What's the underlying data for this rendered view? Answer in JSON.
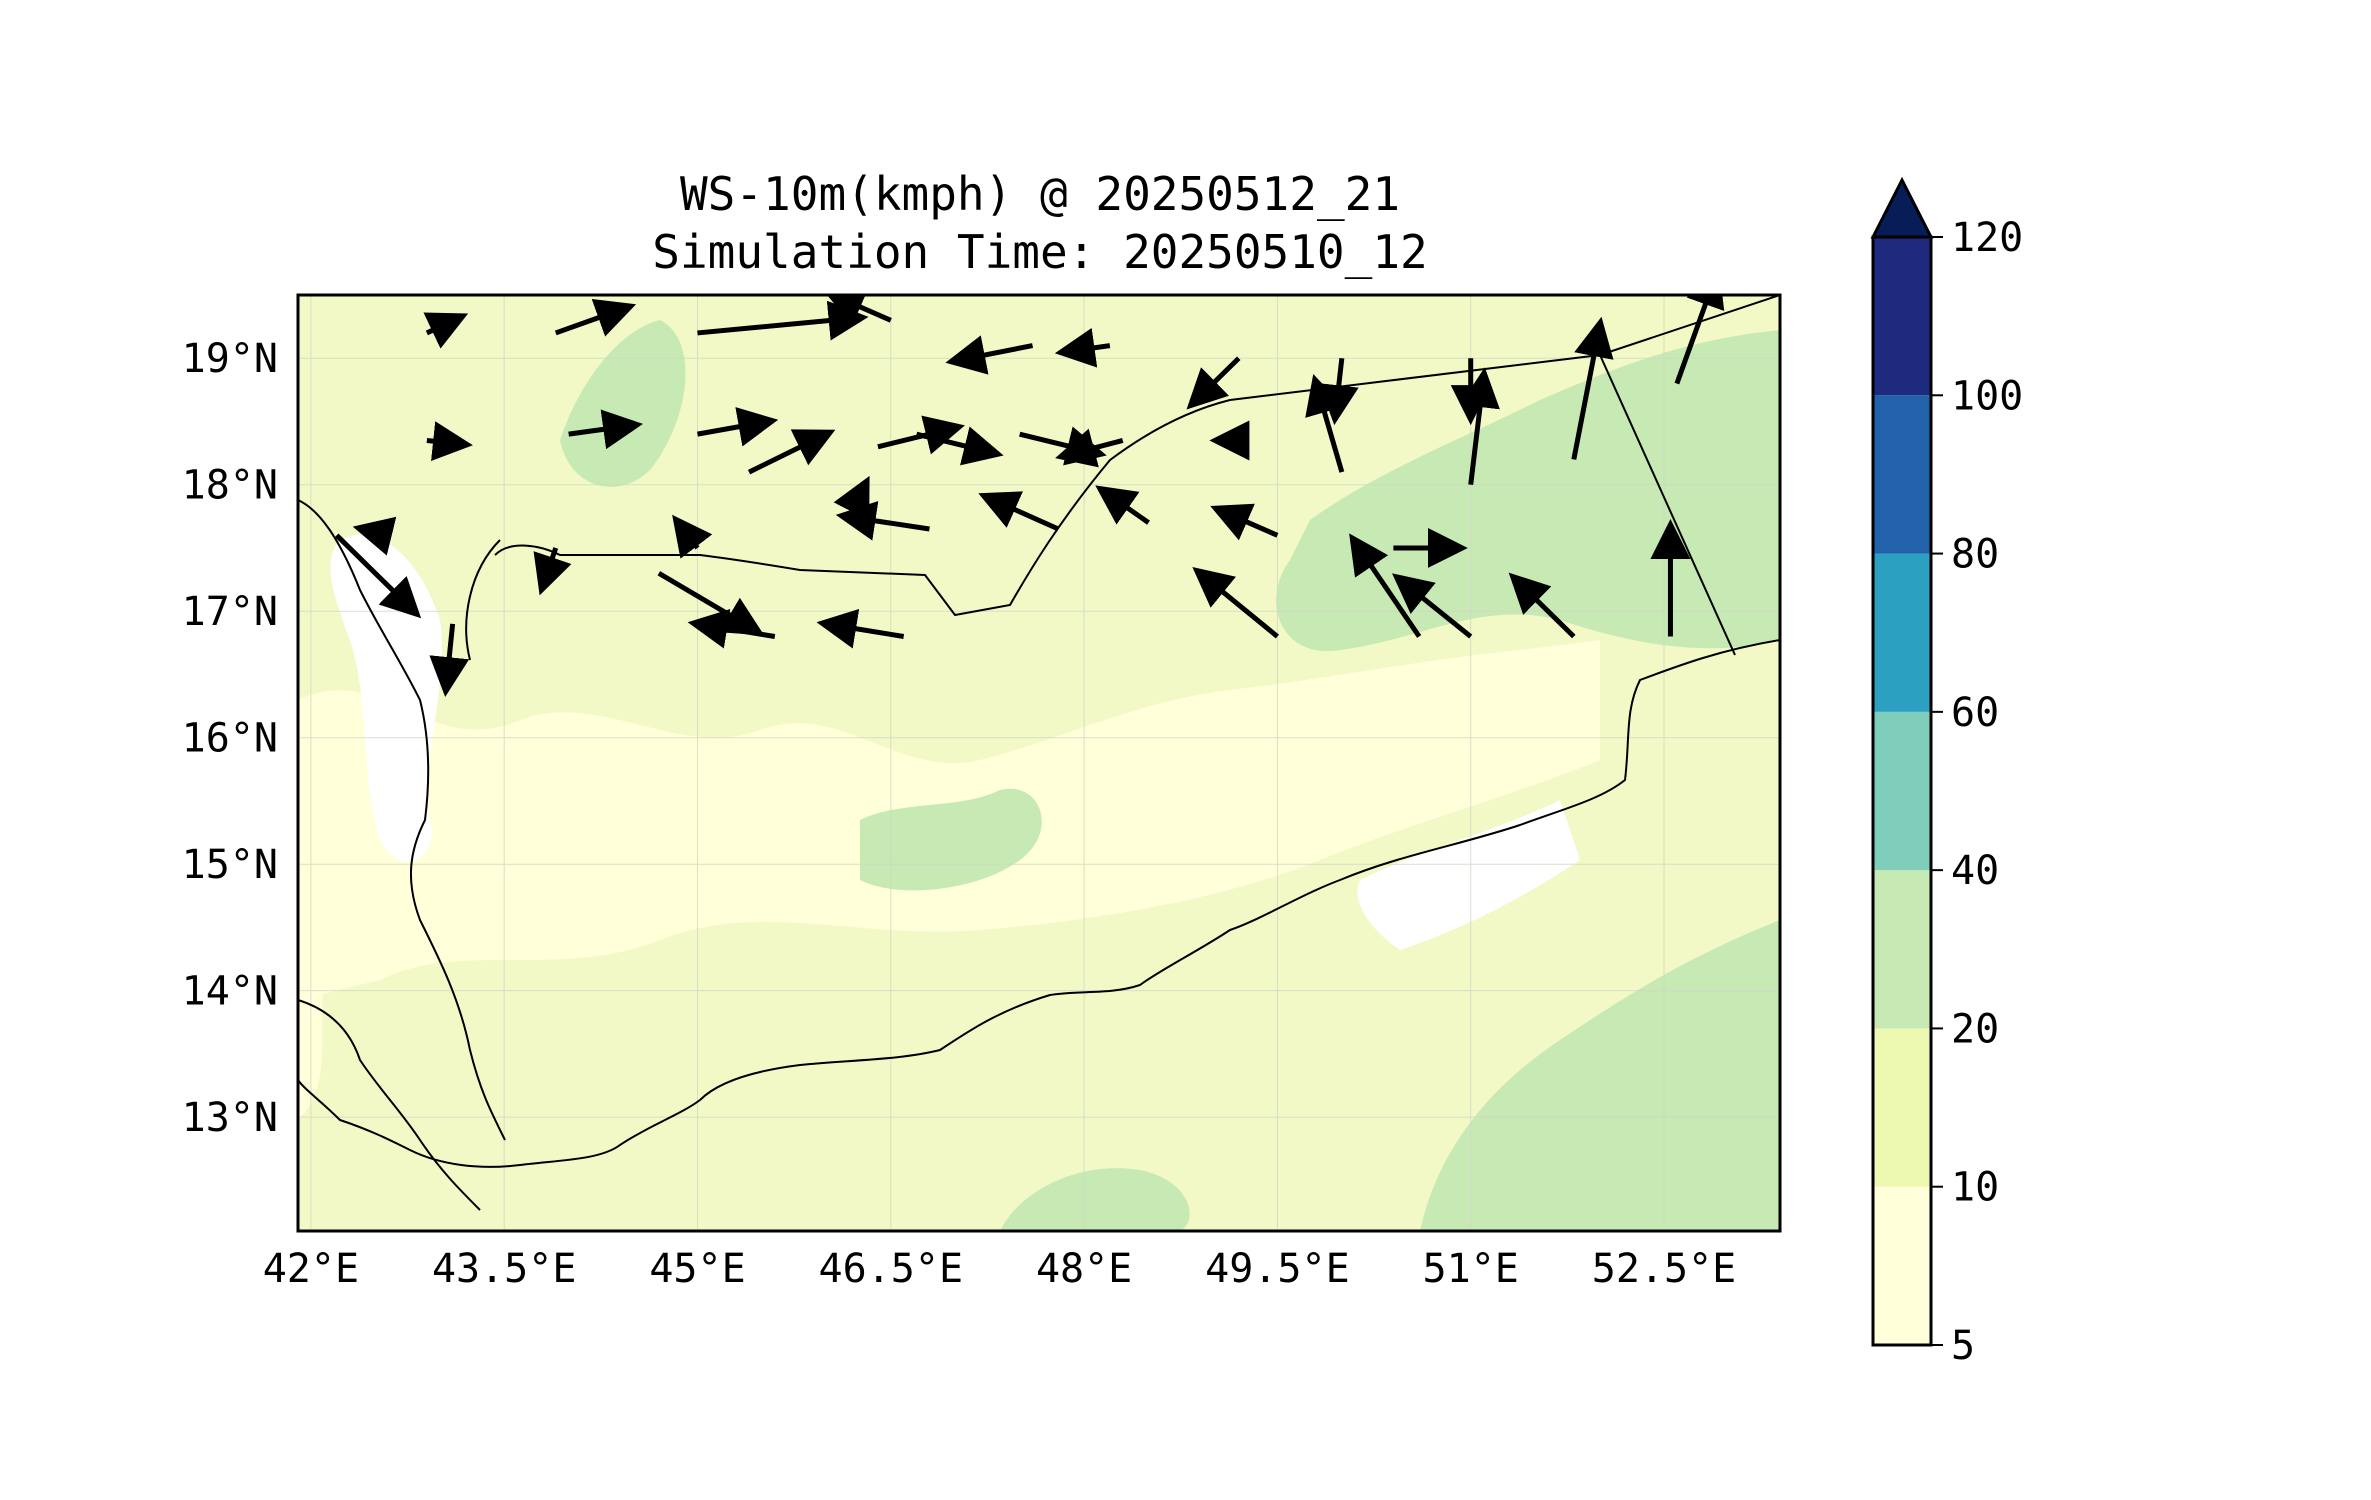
{
  "title": {
    "line1": "WS-10m(kmph) @ 20250512_21",
    "line2": "Simulation Time: 20250510_12"
  },
  "map": {
    "lon_range": [
      41.9,
      53.4
    ],
    "lat_range": [
      12.1,
      19.5
    ],
    "lon_ticks": [
      {
        "value": 42.0,
        "label": "42°E"
      },
      {
        "value": 43.5,
        "label": "43.5°E"
      },
      {
        "value": 45.0,
        "label": "45°E"
      },
      {
        "value": 46.5,
        "label": "46.5°E"
      },
      {
        "value": 48.0,
        "label": "48°E"
      },
      {
        "value": 49.5,
        "label": "49.5°E"
      },
      {
        "value": 51.0,
        "label": "51°E"
      },
      {
        "value": 52.5,
        "label": "52.5°E"
      }
    ],
    "lat_ticks": [
      {
        "value": 19,
        "label": "19°N"
      },
      {
        "value": 18,
        "label": "18°N"
      },
      {
        "value": 17,
        "label": "17°N"
      },
      {
        "value": 16,
        "label": "16°N"
      },
      {
        "value": 15,
        "label": "15°N"
      },
      {
        "value": 14,
        "label": "14°N"
      },
      {
        "value": 13,
        "label": "13°N"
      }
    ],
    "colors": {
      "land_low": "#f2f9c6",
      "band_5_10": "#ffffd9",
      "band_10_20": "#edf8b1",
      "band_20_40": "#c7e9b4",
      "gap": "#ffffff"
    }
  },
  "colorbar": {
    "levels": [
      5,
      10,
      20,
      40,
      60,
      80,
      100,
      120
    ],
    "labels": [
      "5",
      "10",
      "20",
      "40",
      "60",
      "80",
      "100",
      "120"
    ],
    "colors": [
      "#ffffd9",
      "#edf8b1",
      "#c7e9b4",
      "#7fcdbb",
      "#2ca0c1",
      "#2162aa",
      "#1d2a7e"
    ],
    "extend_color": "#081d58"
  },
  "wind_vectors": [
    {
      "lon": 42.9,
      "lat": 19.2,
      "dx": 0.25,
      "dy": 0.12
    },
    {
      "lon": 43.9,
      "lat": 19.2,
      "dx": 0.55,
      "dy": 0.2
    },
    {
      "lon": 45.0,
      "lat": 19.2,
      "dx": 1.25,
      "dy": 0.12
    },
    {
      "lon": 46.5,
      "lat": 19.3,
      "dx": -0.45,
      "dy": 0.2
    },
    {
      "lon": 47.6,
      "lat": 19.1,
      "dx": -0.6,
      "dy": -0.12
    },
    {
      "lon": 48.2,
      "lat": 19.1,
      "dx": -0.35,
      "dy": -0.05
    },
    {
      "lon": 49.2,
      "lat": 19.0,
      "dx": -0.35,
      "dy": -0.35
    },
    {
      "lon": 50.0,
      "lat": 19.0,
      "dx": -0.05,
      "dy": -0.45
    },
    {
      "lon": 51.0,
      "lat": 19.0,
      "dx": 0.0,
      "dy": -0.45
    },
    {
      "lon": 42.9,
      "lat": 18.35,
      "dx": 0.28,
      "dy": -0.03
    },
    {
      "lon": 44.0,
      "lat": 18.4,
      "dx": 0.5,
      "dy": 0.07
    },
    {
      "lon": 45.0,
      "lat": 18.4,
      "dx": 0.55,
      "dy": 0.1
    },
    {
      "lon": 45.4,
      "lat": 18.1,
      "dx": 0.6,
      "dy": 0.3
    },
    {
      "lon": 46.4,
      "lat": 18.3,
      "dx": 0.6,
      "dy": 0.15
    },
    {
      "lon": 46.7,
      "lat": 18.4,
      "dx": 0.6,
      "dy": -0.15
    },
    {
      "lon": 47.5,
      "lat": 18.4,
      "dx": 0.6,
      "dy": -0.15
    },
    {
      "lon": 48.3,
      "lat": 18.35,
      "dx": -0.45,
      "dy": -0.12
    },
    {
      "lon": 49.25,
      "lat": 18.35,
      "dx": -0.2,
      "dy": 0.0
    },
    {
      "lon": 50.0,
      "lat": 18.1,
      "dx": -0.2,
      "dy": 0.7
    },
    {
      "lon": 51.0,
      "lat": 18.0,
      "dx": 0.1,
      "dy": 0.85
    },
    {
      "lon": 51.8,
      "lat": 18.2,
      "dx": 0.2,
      "dy": 1.05
    },
    {
      "lon": 52.6,
      "lat": 18.8,
      "dx": 0.3,
      "dy": 0.85
    },
    {
      "lon": 42.6,
      "lat": 17.6,
      "dx": -0.2,
      "dy": 0.05
    },
    {
      "lon": 43.9,
      "lat": 17.5,
      "dx": -0.1,
      "dy": -0.3
    },
    {
      "lon": 44.7,
      "lat": 17.3,
      "dx": 0.75,
      "dy": -0.45
    },
    {
      "lon": 45.0,
      "lat": 17.5,
      "dx": -0.15,
      "dy": 0.2
    },
    {
      "lon": 46.2,
      "lat": 17.8,
      "dx": 0.1,
      "dy": 0.2
    },
    {
      "lon": 46.8,
      "lat": 17.65,
      "dx": -0.65,
      "dy": 0.1
    },
    {
      "lon": 47.8,
      "lat": 17.65,
      "dx": -0.55,
      "dy": 0.25
    },
    {
      "lon": 48.5,
      "lat": 17.7,
      "dx": -0.35,
      "dy": 0.25
    },
    {
      "lon": 49.5,
      "lat": 17.6,
      "dx": -0.45,
      "dy": 0.2
    },
    {
      "lon": 50.4,
      "lat": 17.5,
      "dx": 0.5,
      "dy": 0.0
    },
    {
      "lon": 51.8,
      "lat": 17.9,
      "dx": 0.0,
      "dy": 0.0
    },
    {
      "lon": 52.5,
      "lat": 17.5,
      "dx": 0.0,
      "dy": 0.0
    },
    {
      "lon": 42.2,
      "lat": 17.6,
      "dx": 0.6,
      "dy": -0.6
    },
    {
      "lon": 43.1,
      "lat": 16.9,
      "dx": -0.05,
      "dy": -0.5
    },
    {
      "lon": 45.6,
      "lat": 16.8,
      "dx": -0.6,
      "dy": 0.1
    },
    {
      "lon": 46.6,
      "lat": 16.8,
      "dx": -0.6,
      "dy": 0.1
    },
    {
      "lon": 49.5,
      "lat": 16.8,
      "dx": -0.6,
      "dy": 0.5
    },
    {
      "lon": 50.6,
      "lat": 16.8,
      "dx": -0.5,
      "dy": 0.75
    },
    {
      "lon": 51.0,
      "lat": 16.8,
      "dx": -0.55,
      "dy": 0.45
    },
    {
      "lon": 51.8,
      "lat": 16.8,
      "dx": -0.45,
      "dy": 0.45
    },
    {
      "lon": 52.55,
      "lat": 16.8,
      "dx": 0.0,
      "dy": 0.85
    }
  ]
}
